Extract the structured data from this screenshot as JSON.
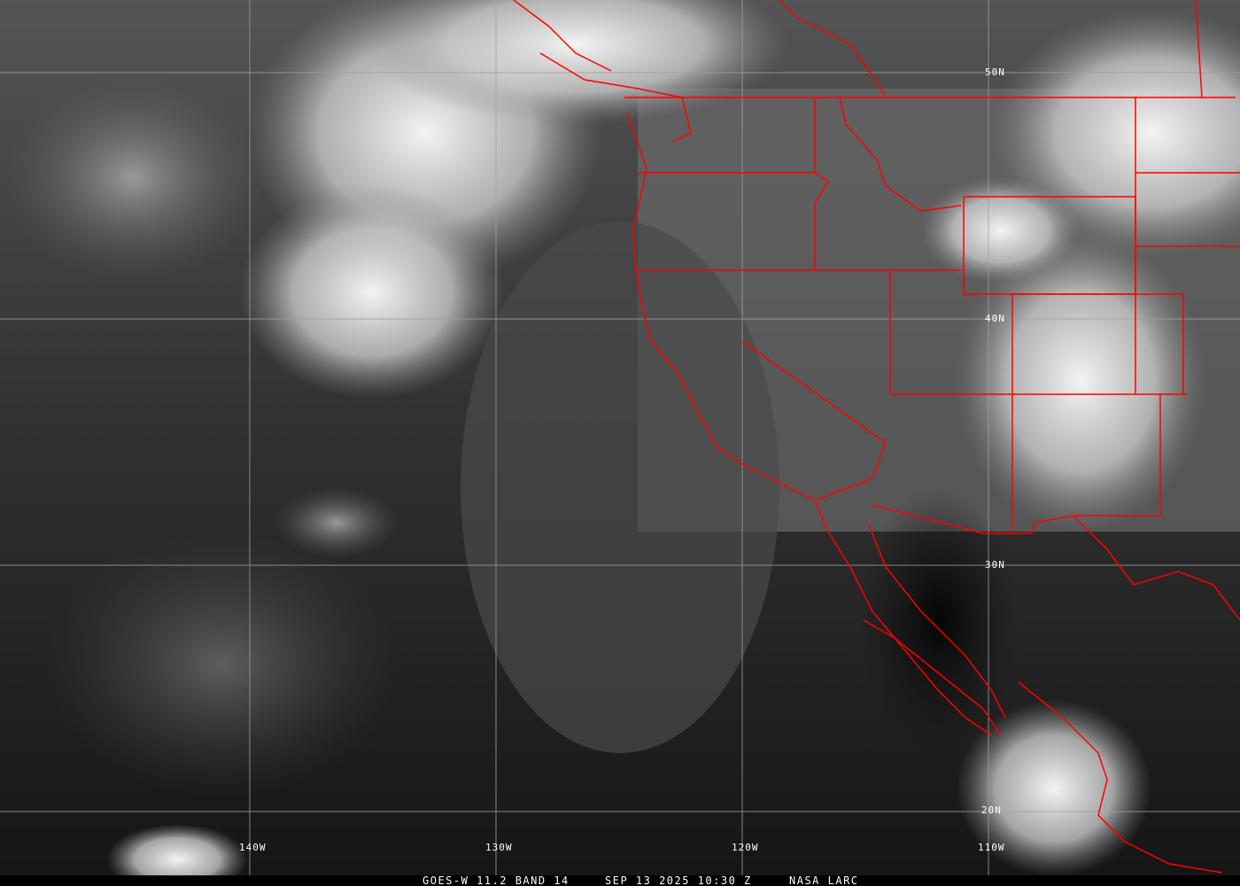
{
  "caption": {
    "satellite_band": "GOES-W 11.2 BAND 14",
    "datetime": "SEP 13 2025 10:30 Z",
    "source": "NASA LARC"
  },
  "lat_labels": [
    "50N",
    "40N",
    "30N",
    "20N"
  ],
  "lon_labels": [
    "140W",
    "130W",
    "120W",
    "110W"
  ],
  "colors": {
    "borders": "#ff0000",
    "grid": "#a0a0a0",
    "labels": "#ffffff"
  }
}
